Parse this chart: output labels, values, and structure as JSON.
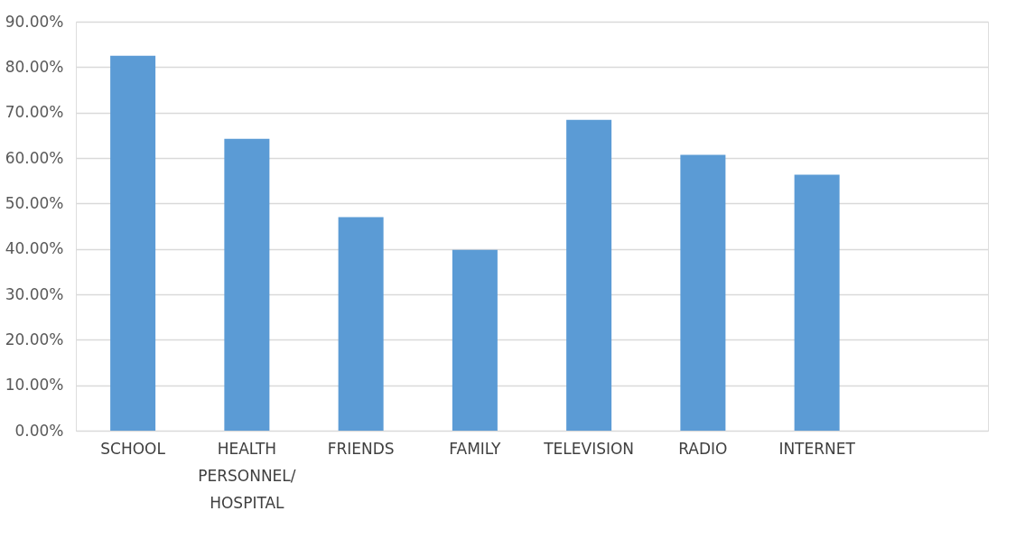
{
  "chart_data": {
    "type": "bar",
    "categories": [
      "SCHOOL",
      "HEALTH PERSONNEL/ HOSPITAL",
      "FRIENDS",
      "FAMILY",
      "TELEVISION",
      "RADIO",
      "INTERNET",
      null
    ],
    "values": [
      82.5,
      64.2,
      47.0,
      39.8,
      68.4,
      60.7,
      56.3,
      null
    ],
    "color": "#5b9bd5",
    "ylim": [
      0,
      90
    ],
    "yticks": [
      {
        "value": 0,
        "label": "0.00%"
      },
      {
        "value": 10,
        "label": "10.00%"
      },
      {
        "value": 20,
        "label": "20.00%"
      },
      {
        "value": 30,
        "label": "30.00%"
      },
      {
        "value": 40,
        "label": "40.00%"
      },
      {
        "value": 50,
        "label": "50.00%"
      },
      {
        "value": 60,
        "label": "60.00%"
      },
      {
        "value": 70,
        "label": "70.00%"
      },
      {
        "value": 80,
        "label": "80.00%"
      },
      {
        "value": 90,
        "label": "90.00%"
      }
    ],
    "grid": "y"
  }
}
